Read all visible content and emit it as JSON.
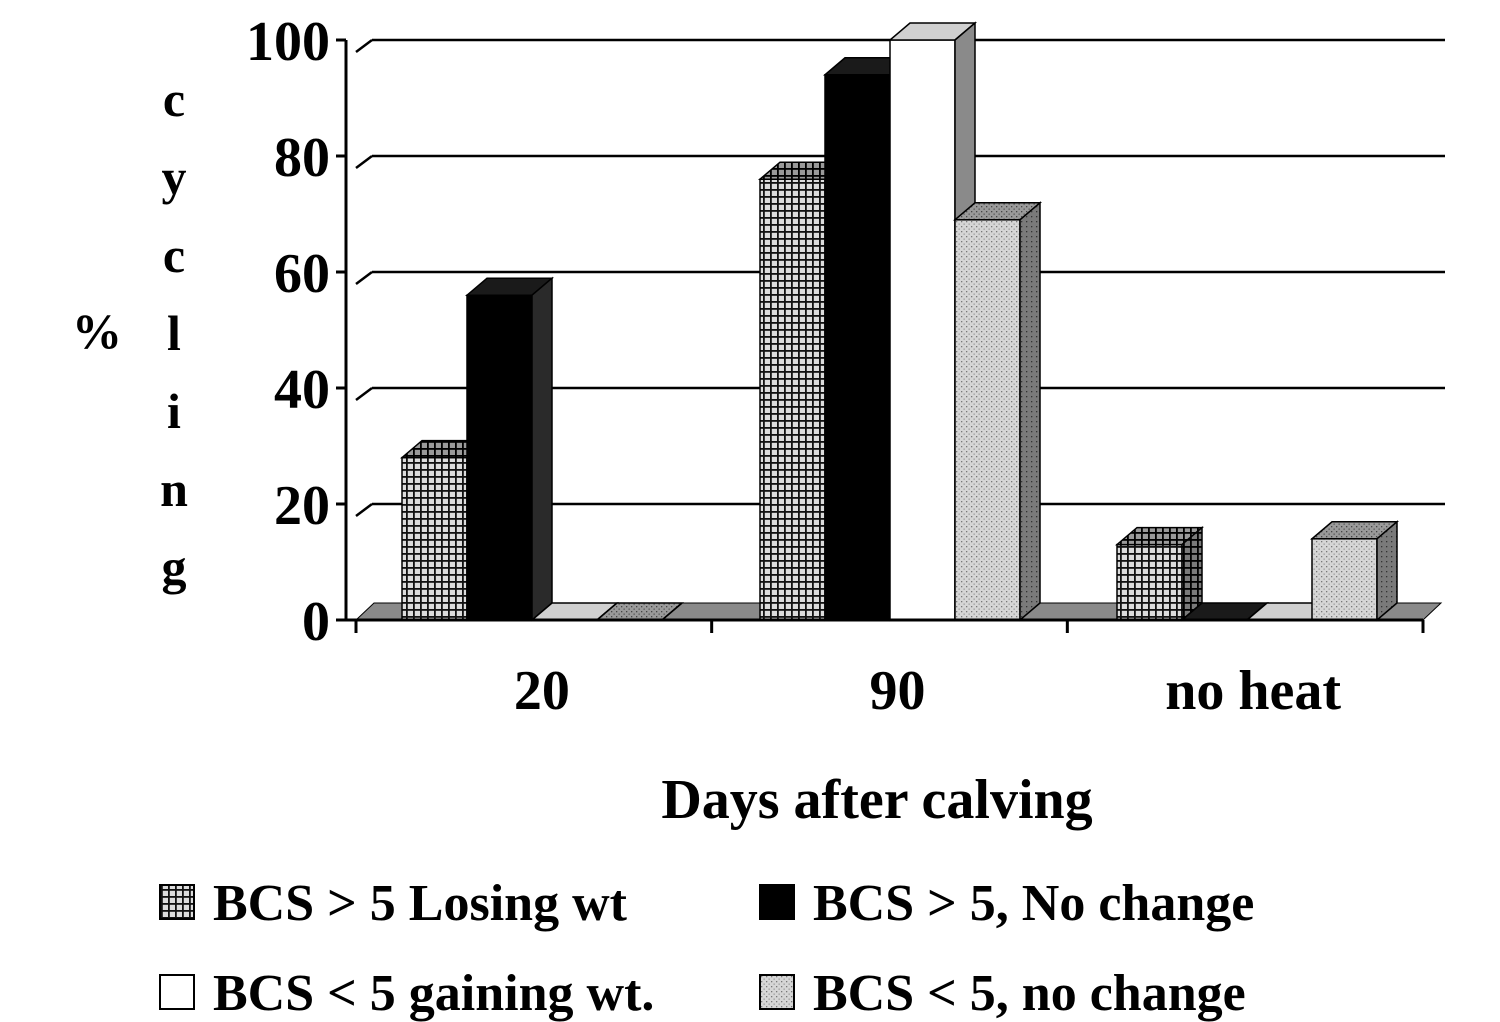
{
  "chart_data": {
    "type": "bar",
    "style": "3d-clustered-column",
    "xlabel": "Days after calving",
    "ylabel": "% cycling",
    "ylabel_parts": {
      "percent": "%",
      "letters": [
        "c",
        "y",
        "c",
        "l",
        "i",
        "n",
        "g"
      ]
    },
    "ylim": [
      0,
      100
    ],
    "yticks": [
      "0",
      "20",
      "40",
      "60",
      "80",
      "100"
    ],
    "grid": true,
    "legend_position": "bottom",
    "categories": [
      "20",
      "90",
      "no heat"
    ],
    "series": [
      {
        "name": "BCS > 5 Losing wt",
        "values": [
          28,
          76,
          13
        ],
        "pattern": "grid",
        "color": "#3a3a3a"
      },
      {
        "name": "BCS > 5, No change",
        "values": [
          56,
          94,
          0
        ],
        "pattern": "solid",
        "color": "#000000"
      },
      {
        "name": "BCS < 5 gaining wt.",
        "values": [
          0,
          100,
          0
        ],
        "pattern": "solid",
        "color": "#ffffff"
      },
      {
        "name": "BCS < 5, no change",
        "values": [
          0,
          69,
          14
        ],
        "pattern": "dots",
        "color": "#c8c8c8"
      }
    ]
  }
}
